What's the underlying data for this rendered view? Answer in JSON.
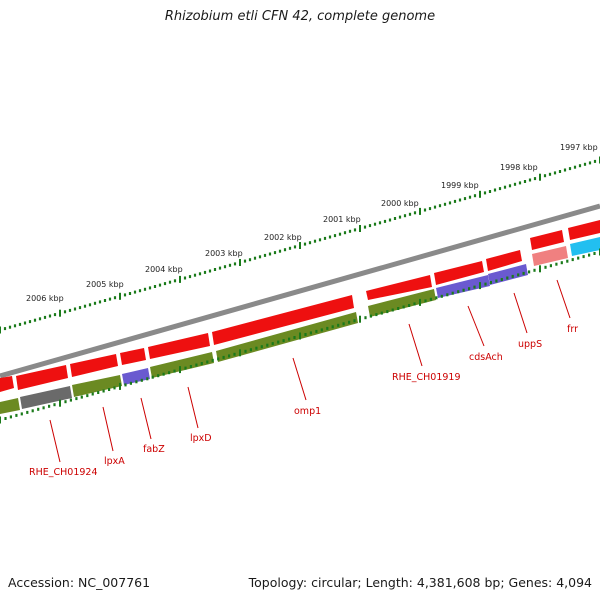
{
  "title": "Rhizobium etli CFN 42, complete genome",
  "footer": {
    "accession": "Accession: NC_007761",
    "summary": "Topology: circular; Length: 4,381,608 bp; Genes: 4,094"
  },
  "ruler": {
    "labels": [
      "1997 kbp",
      "1998 kbp",
      "1999 kbp",
      "2000 kbp",
      "2001 kbp",
      "2002 kbp",
      "2003 kbp",
      "2004 kbp",
      "2005 kbp",
      "2006 kbp"
    ]
  },
  "genes": [
    {
      "name": "frr"
    },
    {
      "name": "uppS"
    },
    {
      "name": "cdsAch"
    },
    {
      "name": "RHE_CH01919"
    },
    {
      "name": "omp1"
    },
    {
      "name": "lpxD"
    },
    {
      "name": "fabZ"
    },
    {
      "name": "lpxA"
    },
    {
      "name": "RHE_CH01924"
    }
  ],
  "colors": {
    "backbone": "#8a8a8a",
    "cds_red": "#ee1010",
    "cds_green": "#6b8a22",
    "cds_purple": "#6a5ad0",
    "cds_gray": "#6a6a6a",
    "cds_pink": "#f08080",
    "cds_cyan": "#22bff0",
    "tick": "#1a7a1a",
    "label": "#cc0000"
  }
}
